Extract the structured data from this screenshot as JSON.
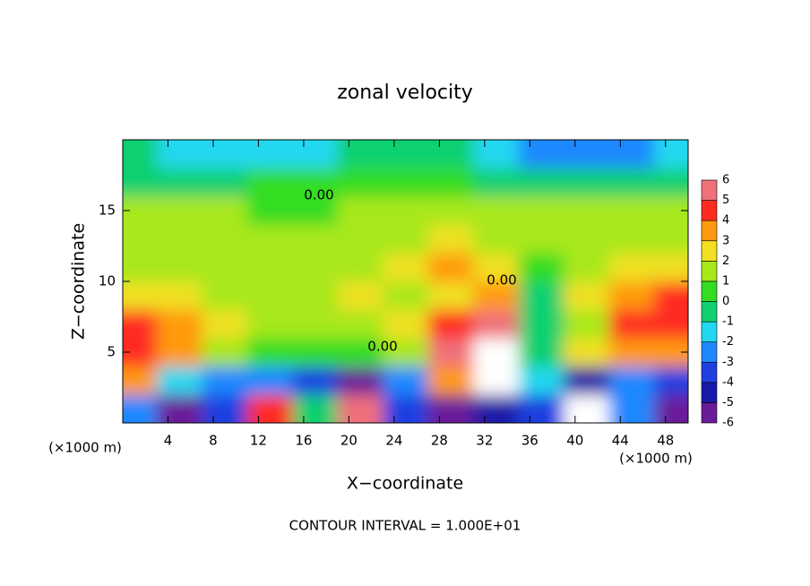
{
  "chart_data": {
    "type": "contour",
    "title": "zonal velocity",
    "x_label": "X−coordinate",
    "y_label": "Z−coordinate",
    "x_unit_label": "(×1000 m)",
    "y_unit_label": "(×1000 m)",
    "footer": "CONTOUR INTERVAL = 1.000E+01",
    "contour_labels": [
      "0.00",
      "0.00",
      "0.00"
    ],
    "xlim": [
      0,
      50
    ],
    "ylim": [
      0,
      20
    ],
    "xticks": [
      4,
      8,
      12,
      16,
      20,
      24,
      28,
      32,
      36,
      40,
      44,
      48
    ],
    "yticks": [
      5,
      10,
      15
    ],
    "x": [
      1,
      5,
      9,
      13,
      17,
      21,
      25,
      29,
      33,
      37,
      41,
      45,
      49
    ],
    "y": [
      1,
      3,
      5,
      7,
      9,
      11,
      13,
      15,
      17,
      19
    ],
    "values": [
      [
        -3,
        -6,
        -4,
        4,
        -1,
        5,
        -4,
        -7,
        -5,
        -4,
        6,
        -3,
        -6
      ],
      [
        3,
        -2,
        -3,
        -3,
        -4,
        -6,
        -3,
        3,
        7,
        -2,
        -5,
        -3,
        -4
      ],
      [
        4,
        3,
        1,
        0,
        0,
        0,
        1,
        5,
        6,
        -1,
        2,
        3,
        3
      ],
      [
        4,
        3,
        2,
        1,
        1,
        1,
        2,
        4,
        5,
        -1,
        1,
        4,
        4
      ],
      [
        2,
        2,
        1,
        1,
        1,
        2,
        1,
        2,
        3,
        -1,
        2,
        3,
        4
      ],
      [
        1,
        1,
        1,
        1,
        1,
        1,
        2,
        3,
        2,
        0,
        1,
        2,
        2
      ],
      [
        1,
        1,
        1,
        1,
        1,
        1,
        1,
        2,
        1,
        1,
        1,
        1,
        1
      ],
      [
        1,
        1,
        1,
        0,
        0,
        1,
        1,
        1,
        1,
        1,
        1,
        1,
        1
      ],
      [
        -1,
        -1,
        -1,
        0,
        0,
        0,
        0,
        0,
        -1,
        -1,
        -1,
        -1,
        -1
      ],
      [
        -1,
        -2,
        -2,
        -2,
        -2,
        -1,
        -1,
        -1,
        -2,
        -3,
        -3,
        -3,
        -2
      ]
    ],
    "colorbar_ticks": [
      -6,
      -5,
      -4,
      -3,
      -2,
      -1,
      0,
      1,
      2,
      3,
      4,
      5,
      6
    ],
    "colors": [
      "#6a1b9a",
      "#1a1aa8",
      "#1f3fe0",
      "#1e88ff",
      "#22d8f0",
      "#10d070",
      "#33dd22",
      "#a8e81a",
      "#f0e020",
      "#ff9a10",
      "#ff2a20",
      "#f0707a"
    ],
    "over_color": "#ffffff"
  }
}
